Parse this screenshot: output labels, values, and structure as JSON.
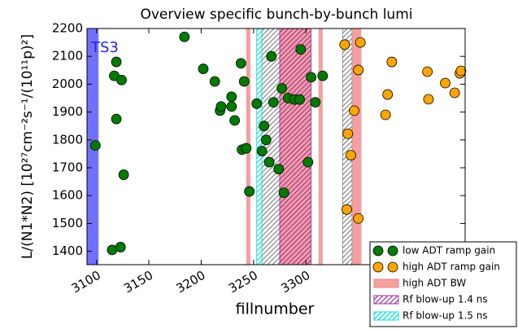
{
  "chart_data": {
    "type": "scatter",
    "title": "Overview specific bunch-by-bunch lumi",
    "xlabel": "fillnumber",
    "ylabel": "L/(N1*N2) [10²⁷cm⁻²s⁻¹/(10¹¹p)²]",
    "xlim": [
      3091,
      3452
    ],
    "ylim": [
      1352,
      2200
    ],
    "xticks": [
      3100,
      3150,
      3200,
      3250,
      3300
    ],
    "yticks": [
      1400,
      1500,
      1600,
      1700,
      1800,
      1900,
      2000,
      2100,
      2200
    ],
    "legend": "lower right",
    "series": [
      {
        "name": "low ADT ramp gain",
        "color": "#007a00",
        "x": [
          3099,
          3115,
          3123,
          3119,
          3117,
          3124,
          3119,
          3126,
          3184,
          3202,
          3213,
          3218,
          3219,
          3229,
          3229,
          3232,
          3238,
          3241,
          3239,
          3243,
          3246,
          3253,
          3258,
          3260,
          3262,
          3265,
          3267,
          3269,
          3274,
          3277,
          3279,
          3283,
          3289,
          3294,
          3295,
          3302,
          3305,
          3309,
          3316
        ],
        "values": [
          1780,
          1405,
          1415,
          2080,
          2030,
          2015,
          1875,
          1675,
          2170,
          2055,
          2010,
          1905,
          1920,
          1955,
          1920,
          1870,
          2075,
          2010,
          1765,
          1770,
          1615,
          1930,
          1760,
          1850,
          1800,
          1720,
          2100,
          1935,
          1695,
          1985,
          1610,
          1950,
          1945,
          1945,
          2125,
          1720,
          2025,
          1935,
          2030
        ]
      },
      {
        "name": "high ADT ramp gain",
        "color": "#ffa500",
        "x": [
          3337,
          3352,
          3350,
          3382,
          3340,
          3346,
          3343,
          3378,
          3376,
          3339,
          3350,
          3416,
          3417,
          3433,
          3442,
          3447,
          3448
        ],
        "values": [
          2142,
          2150,
          2051,
          2080,
          1822,
          1905,
          1745,
          1963,
          1890,
          1550,
          1518,
          2045,
          1946,
          2004,
          1969,
          2039,
          2048
        ]
      }
    ],
    "bands": [
      {
        "name": "TS3",
        "color": "#4040ff",
        "style": "fill",
        "in_legend": false,
        "ranges": [
          [
            3091,
            3102
          ]
        ]
      },
      {
        "color": "#808080",
        "style": "hatch",
        "in_legend": false,
        "ranges": [
          [
            3258,
            3275
          ],
          [
            3335,
            3344
          ]
        ]
      },
      {
        "name": "high ADT BW",
        "color": "#f08080",
        "style": "fill",
        "in_legend": true,
        "ranges": [
          [
            3243,
            3247
          ],
          [
            3275,
            3305
          ],
          [
            3312,
            3316
          ],
          [
            3344,
            3353
          ]
        ]
      },
      {
        "name": "Rf blow-up 1.4 ns",
        "color": "#9b30a0",
        "style": "hatch",
        "in_legend": true,
        "ranges": [
          [
            3275,
            3305
          ]
        ]
      },
      {
        "name": "Rf blow-up 1.5 ns",
        "color": "#00e0e0",
        "style": "hatch",
        "in_legend": true,
        "ranges": [
          [
            3253,
            3258
          ]
        ]
      }
    ]
  }
}
